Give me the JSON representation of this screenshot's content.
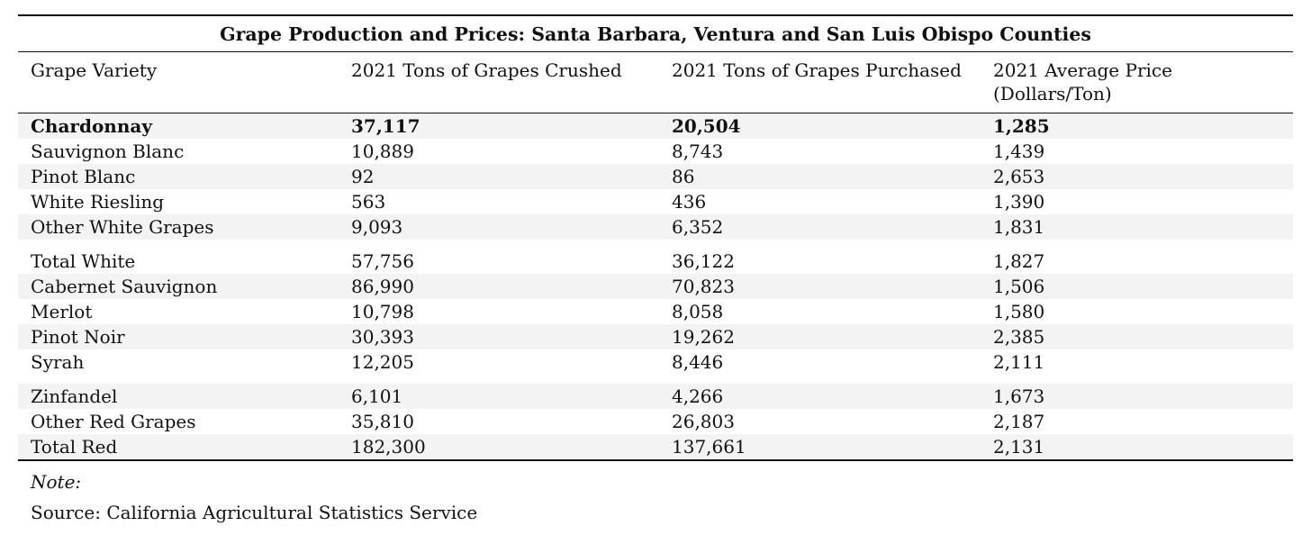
{
  "table": {
    "title": "Grape Production and Prices: Santa Barbara, Ventura and San Luis Obispo Counties",
    "headers": [
      "Grape Variety",
      "2021 Tons of Grapes Crushed",
      "2021 Tons of Grapes Purchased",
      "2021 Average Price",
      "(Dollars/Ton)"
    ],
    "rows": [
      [
        "Chardonnay",
        "37,117",
        "20,504",
        "1,285"
      ],
      [
        "Sauvignon Blanc",
        "10,889",
        "8,743",
        "1,439"
      ],
      [
        "Pinot Blanc",
        "92",
        "86",
        "2,653"
      ],
      [
        "White Riesling",
        "563",
        "436",
        "1,390"
      ],
      [
        "Other White Grapes",
        "9,093",
        "6,352",
        "1,831"
      ],
      [
        "Total White",
        "57,756",
        "36,122",
        "1,827"
      ],
      [
        "Cabernet Sauvignon",
        "86,990",
        "70,823",
        "1,506"
      ],
      [
        "Merlot",
        "10,798",
        "8,058",
        "1,580"
      ],
      [
        "Pinot Noir",
        "30,393",
        "19,262",
        "2,385"
      ],
      [
        "Syrah",
        "12,205",
        "8,446",
        "2,111"
      ],
      [
        "Zinfandel",
        "6,101",
        "4,266",
        "1,673"
      ],
      [
        "Other Red Grapes",
        "35,810",
        "26,803",
        "2,187"
      ],
      [
        "Total Red",
        "182,300",
        "137,661",
        "2,131"
      ]
    ]
  },
  "notes": {
    "note_label": "Note:",
    "source": "Source: California Agricultural Statistics Service"
  }
}
